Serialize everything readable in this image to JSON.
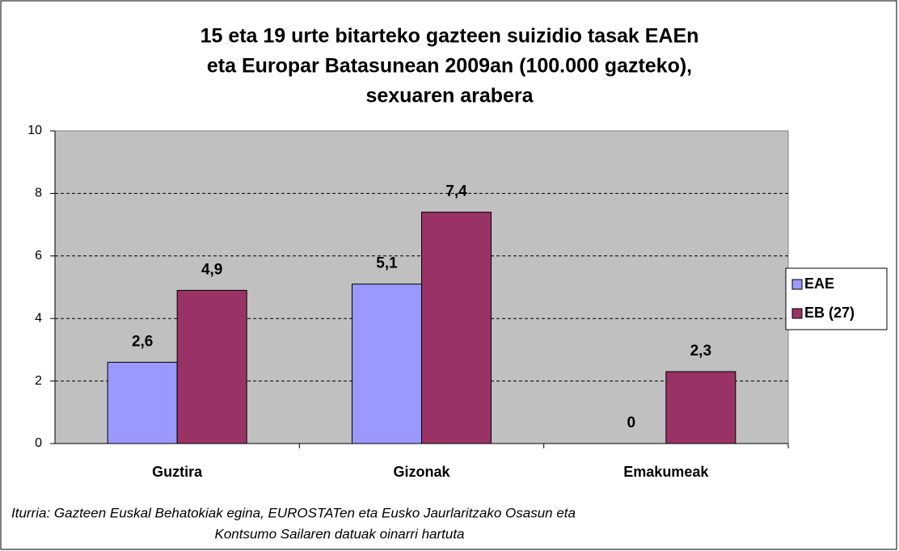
{
  "chart_data": {
    "type": "bar",
    "title": [
      "15 eta 19 urte bitarteko gazteen suizidio tasak EAEn",
      "eta Europar Batasunean 2009an (100.000 gazteko),",
      "sexuaren arabera"
    ],
    "categories": [
      "Guztira",
      "Gizonak",
      "Emakumeak"
    ],
    "series": [
      {
        "name": "EAE",
        "color": "#9999ff",
        "values": [
          2.6,
          5.1,
          0
        ],
        "value_labels": [
          "2,6",
          "5,1",
          "0"
        ]
      },
      {
        "name": "EB (27)",
        "color": "#993366",
        "values": [
          4.9,
          7.4,
          2.3
        ],
        "value_labels": [
          "4,9",
          "7,4",
          "2,3"
        ]
      }
    ],
    "ylim": [
      0,
      10
    ],
    "yticks": [
      0,
      2,
      4,
      6,
      8,
      10
    ],
    "grid": true,
    "legend": "right",
    "source": [
      "Iturria: Gazteen Euskal Behatokiak egina, EUROSTATen eta Eusko Jaurlaritzako Osasun eta",
      "Kontsumo Sailaren datuak oinarri hartuta"
    ]
  }
}
